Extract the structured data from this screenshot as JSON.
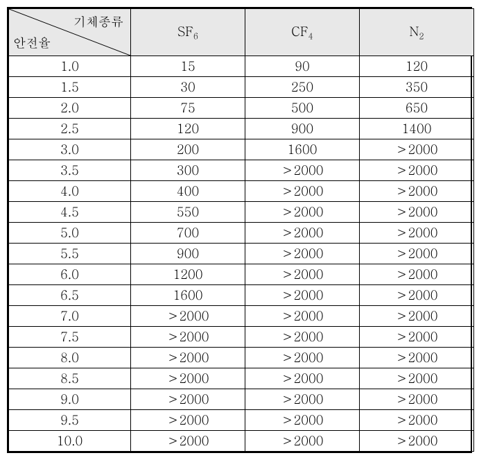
{
  "table": {
    "header": {
      "diagonal_top": "기체종류",
      "diagonal_bottom": "안전율",
      "columns": [
        {
          "base": "SF",
          "sub": "6"
        },
        {
          "base": "CF",
          "sub": "4"
        },
        {
          "base": "N",
          "sub": "2"
        }
      ]
    },
    "rows": [
      {
        "label": "1.0",
        "values": [
          "15",
          "90",
          "120"
        ]
      },
      {
        "label": "1.5",
        "values": [
          "30",
          "250",
          "350"
        ]
      },
      {
        "label": "2.0",
        "values": [
          "75",
          "500",
          "650"
        ]
      },
      {
        "label": "2.5",
        "values": [
          "120",
          "900",
          "1400"
        ]
      },
      {
        "label": "3.0",
        "values": [
          "200",
          "1600",
          "＞2000"
        ]
      },
      {
        "label": "3.5",
        "values": [
          "300",
          "＞2000",
          "＞2000"
        ]
      },
      {
        "label": "4.0",
        "values": [
          "400",
          "＞2000",
          "＞2000"
        ]
      },
      {
        "label": "4.5",
        "values": [
          "550",
          "＞2000",
          "＞2000"
        ]
      },
      {
        "label": "5.0",
        "values": [
          "700",
          "＞2000",
          "＞2000"
        ]
      },
      {
        "label": "5.5",
        "values": [
          "900",
          "＞2000",
          "＞2000"
        ]
      },
      {
        "label": "6.0",
        "values": [
          "1200",
          "＞2000",
          "＞2000"
        ]
      },
      {
        "label": "6.5",
        "values": [
          "1600",
          "＞2000",
          "＞2000"
        ]
      },
      {
        "label": "7.0",
        "values": [
          "＞2000",
          "＞2000",
          "＞2000"
        ]
      },
      {
        "label": "7.5",
        "values": [
          "＞2000",
          "＞2000",
          "＞2000"
        ]
      },
      {
        "label": "8.0",
        "values": [
          "＞2000",
          "＞2000",
          "＞2000"
        ]
      },
      {
        "label": "8.5",
        "values": [
          "＞2000",
          "＞2000",
          "＞2000"
        ]
      },
      {
        "label": "9.0",
        "values": [
          "＞2000",
          "＞2000",
          "＞2000"
        ]
      },
      {
        "label": "9.5",
        "values": [
          "＞2000",
          "＞2000",
          "＞2000"
        ]
      },
      {
        "label": "10.0",
        "values": [
          "＞2000",
          "＞2000",
          "＞2000"
        ]
      }
    ],
    "styling": {
      "border_color": "#000000",
      "header_bg": "#e8e8e8",
      "cell_bg": "#ffffff",
      "text_color": "#000000",
      "font_size": 18,
      "sub_font_size": 12,
      "outer_border_width": 2,
      "inner_border_width": 1,
      "header_row_height": 68,
      "data_row_height": 30,
      "col_width_first": 176,
      "col_width_rest": 165
    }
  }
}
